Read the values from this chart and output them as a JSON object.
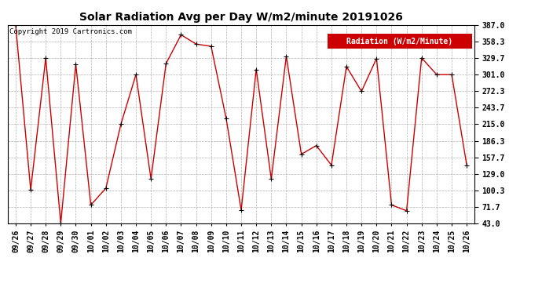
{
  "title": "Solar Radiation Avg per Day W/m2/minute 20191026",
  "copyright_text": "Copyright 2019 Cartronics.com",
  "legend_label": "Radiation (W/m2/Minute)",
  "dates": [
    "09/26",
    "09/27",
    "09/28",
    "09/29",
    "09/30",
    "10/01",
    "10/02",
    "10/03",
    "10/04",
    "10/05",
    "10/06",
    "10/07",
    "10/08",
    "10/09",
    "10/10",
    "10/11",
    "10/12",
    "10/13",
    "10/14",
    "10/15",
    "10/16",
    "10/17",
    "10/18",
    "10/19",
    "10/20",
    "10/21",
    "10/22",
    "10/23",
    "10/24",
    "10/25",
    "10/26"
  ],
  "values": [
    387.0,
    101.0,
    330.0,
    43.0,
    319.0,
    75.0,
    104.0,
    215.0,
    301.0,
    120.0,
    320.0,
    370.0,
    354.0,
    350.0,
    225.0,
    66.0,
    310.0,
    120.0,
    333.0,
    163.0,
    178.0,
    144.0,
    315.0,
    272.0,
    329.0,
    75.0,
    65.0,
    330.0,
    301.0,
    301.0,
    144.0
  ],
  "y_ticks": [
    43.0,
    71.7,
    100.3,
    129.0,
    157.7,
    186.3,
    215.0,
    243.7,
    272.3,
    301.0,
    329.7,
    358.3,
    387.0
  ],
  "line_color": "#cc0000",
  "marker_color": "#000000",
  "background_color": "#ffffff",
  "grid_color": "#b0b0b0",
  "title_fontsize": 10,
  "copyright_fontsize": 6.5,
  "tick_fontsize": 7,
  "legend_bg": "#cc0000",
  "legend_text_color": "#ffffff",
  "legend_fontsize": 7,
  "border_color": "#000000"
}
